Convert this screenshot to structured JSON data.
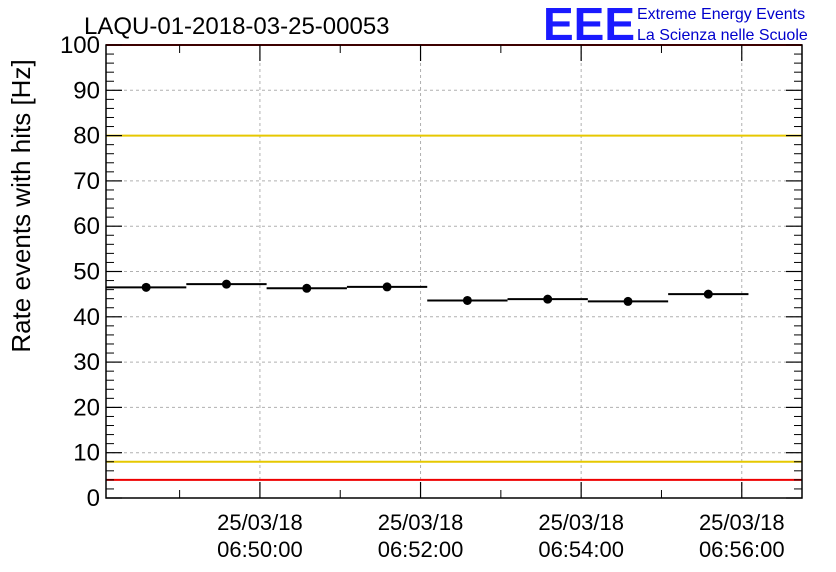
{
  "chart_data": {
    "type": "scatter",
    "title": "LAQU-01-2018-03-25-00053",
    "ylabel": "Rate events with hits [Hz]",
    "xlabel": "",
    "ylim": [
      0,
      100
    ],
    "yticks": [
      "0",
      "10",
      "20",
      "30",
      "40",
      "50",
      "60",
      "70",
      "80",
      "90",
      "100"
    ],
    "xticks": [
      {
        "date": "25/03/18",
        "time": "06:50:00"
      },
      {
        "date": "25/03/18",
        "time": "06:52:00"
      },
      {
        "date": "25/03/18",
        "time": "06:54:00"
      },
      {
        "date": "25/03/18",
        "time": "06:56:00"
      }
    ],
    "xlim": [
      "06:48:05",
      "06:56:45"
    ],
    "grid": true,
    "bin_width_min": 1,
    "points": [
      {
        "x": "06:48:35",
        "y": 46.5
      },
      {
        "x": "06:49:35",
        "y": 47.2
      },
      {
        "x": "06:50:35",
        "y": 46.3
      },
      {
        "x": "06:51:35",
        "y": 46.6
      },
      {
        "x": "06:52:35",
        "y": 43.6
      },
      {
        "x": "06:53:35",
        "y": 43.9
      },
      {
        "x": "06:54:35",
        "y": 43.4
      },
      {
        "x": "06:55:35",
        "y": 45.0
      }
    ],
    "reference_lines": [
      {
        "y": 100,
        "color": "#ee0000"
      },
      {
        "y": 80,
        "color": "#e6c800"
      },
      {
        "y": 8,
        "color": "#e6c800"
      },
      {
        "y": 4,
        "color": "#ee0000"
      }
    ]
  },
  "logo": {
    "mark": "EEE",
    "line1": "Extreme Energy Events",
    "line2": "La Scienza nelle Scuole",
    "color": "#1a1aff"
  }
}
